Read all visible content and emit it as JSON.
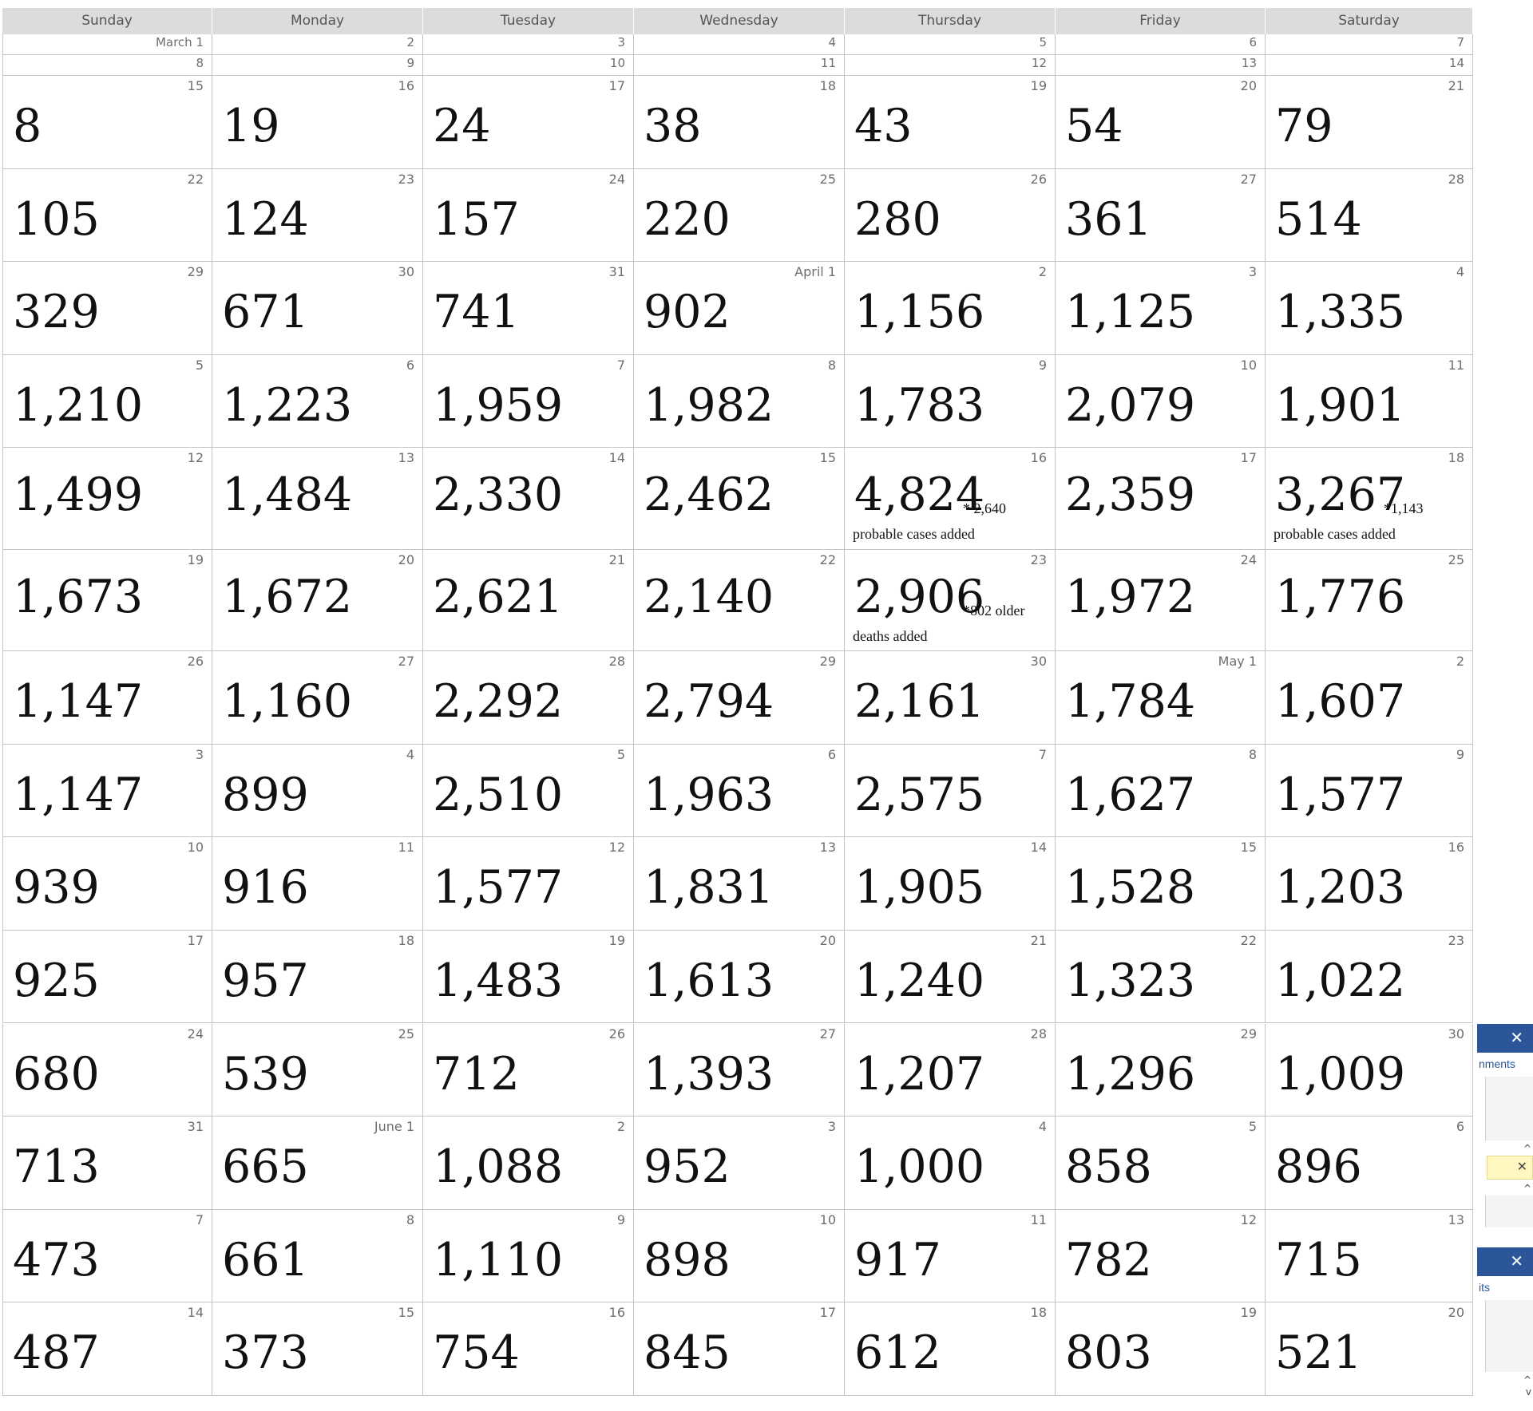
{
  "weekdays": [
    "Sunday",
    "Monday",
    "Tuesday",
    "Wednesday",
    "Thursday",
    "Friday",
    "Saturday"
  ],
  "weeks": [
    {
      "thin": true,
      "days": [
        {
          "date": "March 1",
          "count": ""
        },
        {
          "date": "2",
          "count": ""
        },
        {
          "date": "3",
          "count": ""
        },
        {
          "date": "4",
          "count": ""
        },
        {
          "date": "5",
          "count": ""
        },
        {
          "date": "6",
          "count": ""
        },
        {
          "date": "7",
          "count": ""
        }
      ]
    },
    {
      "thin": true,
      "days": [
        {
          "date": "8",
          "count": ""
        },
        {
          "date": "9",
          "count": ""
        },
        {
          "date": "10",
          "count": ""
        },
        {
          "date": "11",
          "count": ""
        },
        {
          "date": "12",
          "count": ""
        },
        {
          "date": "13",
          "count": ""
        },
        {
          "date": "14",
          "count": ""
        }
      ]
    },
    {
      "days": [
        {
          "date": "15",
          "count": "8"
        },
        {
          "date": "16",
          "count": "19"
        },
        {
          "date": "17",
          "count": "24"
        },
        {
          "date": "18",
          "count": "38"
        },
        {
          "date": "19",
          "count": "43"
        },
        {
          "date": "20",
          "count": "54"
        },
        {
          "date": "21",
          "count": "79"
        }
      ]
    },
    {
      "days": [
        {
          "date": "22",
          "count": "105"
        },
        {
          "date": "23",
          "count": "124"
        },
        {
          "date": "24",
          "count": "157"
        },
        {
          "date": "25",
          "count": "220"
        },
        {
          "date": "26",
          "count": "280"
        },
        {
          "date": "27",
          "count": "361"
        },
        {
          "date": "28",
          "count": "514"
        }
      ]
    },
    {
      "days": [
        {
          "date": "29",
          "count": "329"
        },
        {
          "date": "30",
          "count": "671"
        },
        {
          "date": "31",
          "count": "741"
        },
        {
          "date": "April 1",
          "count": "902"
        },
        {
          "date": "2",
          "count": "1,156"
        },
        {
          "date": "3",
          "count": "1,125"
        },
        {
          "date": "4",
          "count": "1,335"
        }
      ]
    },
    {
      "days": [
        {
          "date": "5",
          "count": "1,210"
        },
        {
          "date": "6",
          "count": "1,223"
        },
        {
          "date": "7",
          "count": "1,959"
        },
        {
          "date": "8",
          "count": "1,982"
        },
        {
          "date": "9",
          "count": "1,783"
        },
        {
          "date": "10",
          "count": "2,079"
        },
        {
          "date": "11",
          "count": "1,901"
        }
      ]
    },
    {
      "days": [
        {
          "date": "12",
          "count": "1,499"
        },
        {
          "date": "13",
          "count": "1,484"
        },
        {
          "date": "14",
          "count": "2,330"
        },
        {
          "date": "15",
          "count": "2,462"
        },
        {
          "date": "16",
          "count": "4,824",
          "note_a": "* 2,640",
          "note_b": "probable cases added"
        },
        {
          "date": "17",
          "count": "2,359"
        },
        {
          "date": "18",
          "count": "3,267",
          "note_a": "*1,143",
          "note_b": "probable cases added"
        }
      ]
    },
    {
      "days": [
        {
          "date": "19",
          "count": "1,673"
        },
        {
          "date": "20",
          "count": "1,672"
        },
        {
          "date": "21",
          "count": "2,621"
        },
        {
          "date": "22",
          "count": "2,140"
        },
        {
          "date": "23",
          "count": "2,906",
          "note_a": "*802 older",
          "note_b": "deaths added"
        },
        {
          "date": "24",
          "count": "1,972"
        },
        {
          "date": "25",
          "count": "1,776"
        }
      ]
    },
    {
      "days": [
        {
          "date": "26",
          "count": "1,147"
        },
        {
          "date": "27",
          "count": "1,160"
        },
        {
          "date": "28",
          "count": "2,292"
        },
        {
          "date": "29",
          "count": "2,794"
        },
        {
          "date": "30",
          "count": "2,161"
        },
        {
          "date": "May 1",
          "count": "1,784"
        },
        {
          "date": "2",
          "count": "1,607"
        }
      ]
    },
    {
      "days": [
        {
          "date": "3",
          "count": "1,147"
        },
        {
          "date": "4",
          "count": "899"
        },
        {
          "date": "5",
          "count": "2,510"
        },
        {
          "date": "6",
          "count": "1,963"
        },
        {
          "date": "7",
          "count": "2,575"
        },
        {
          "date": "8",
          "count": "1,627"
        },
        {
          "date": "9",
          "count": "1,577"
        }
      ]
    },
    {
      "days": [
        {
          "date": "10",
          "count": "939"
        },
        {
          "date": "11",
          "count": "916"
        },
        {
          "date": "12",
          "count": "1,577"
        },
        {
          "date": "13",
          "count": "1,831"
        },
        {
          "date": "14",
          "count": "1,905"
        },
        {
          "date": "15",
          "count": "1,528"
        },
        {
          "date": "16",
          "count": "1,203"
        }
      ]
    },
    {
      "days": [
        {
          "date": "17",
          "count": "925"
        },
        {
          "date": "18",
          "count": "957"
        },
        {
          "date": "19",
          "count": "1,483"
        },
        {
          "date": "20",
          "count": "1,613"
        },
        {
          "date": "21",
          "count": "1,240"
        },
        {
          "date": "22",
          "count": "1,323"
        },
        {
          "date": "23",
          "count": "1,022"
        }
      ]
    },
    {
      "days": [
        {
          "date": "24",
          "count": "680"
        },
        {
          "date": "25",
          "count": "539"
        },
        {
          "date": "26",
          "count": "712"
        },
        {
          "date": "27",
          "count": "1,393"
        },
        {
          "date": "28",
          "count": "1,207"
        },
        {
          "date": "29",
          "count": "1,296"
        },
        {
          "date": "30",
          "count": "1,009"
        }
      ]
    },
    {
      "days": [
        {
          "date": "31",
          "count": "713"
        },
        {
          "date": "June 1",
          "count": "665"
        },
        {
          "date": "2",
          "count": "1,088"
        },
        {
          "date": "3",
          "count": "952"
        },
        {
          "date": "4",
          "count": "1,000"
        },
        {
          "date": "5",
          "count": "858"
        },
        {
          "date": "6",
          "count": "896"
        }
      ]
    },
    {
      "days": [
        {
          "date": "7",
          "count": "473"
        },
        {
          "date": "8",
          "count": "661"
        },
        {
          "date": "9",
          "count": "1,110"
        },
        {
          "date": "10",
          "count": "898"
        },
        {
          "date": "11",
          "count": "917"
        },
        {
          "date": "12",
          "count": "782"
        },
        {
          "date": "13",
          "count": "715"
        }
      ]
    },
    {
      "days": [
        {
          "date": "14",
          "count": "487"
        },
        {
          "date": "15",
          "count": "373"
        },
        {
          "date": "16",
          "count": "754"
        },
        {
          "date": "17",
          "count": "845"
        },
        {
          "date": "18",
          "count": "612"
        },
        {
          "date": "19",
          "count": "803"
        },
        {
          "date": "20",
          "count": "521"
        }
      ]
    }
  ],
  "side_panel": {
    "close_glyph": "✕",
    "link_1": "nments",
    "link_2": "its",
    "scroll_up": "^",
    "scroll_down": "v",
    "accent_color": "#2b579a"
  }
}
